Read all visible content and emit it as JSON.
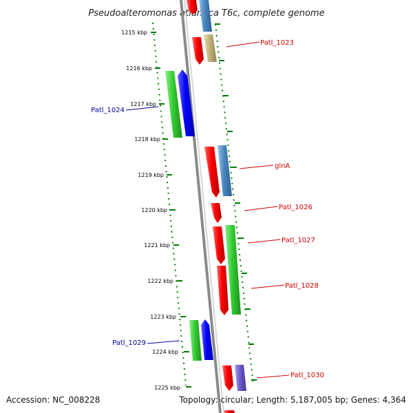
{
  "title": "Pseudoalteromonas atlantica T6c, complete genome",
  "accession_text": "Accession: NC_008228",
  "topology_text": "Topology: circular; Length: 5,187,005 bp; Genes: 4,364",
  "colors": {
    "forward_label": "#cc0000",
    "reverse_label": "#000099",
    "backbone": "#8a8a8a",
    "tick": "#007a00"
  },
  "kbp_labels": [
    "1215 kbp",
    "1216 kbp",
    "1217 kbp",
    "1218 kbp",
    "1219 kbp",
    "1220 kbp",
    "1221 kbp",
    "1222 kbp",
    "1223 kbp",
    "1224 kbp",
    "1225 kbp"
  ],
  "gene_labels": [
    {
      "text": "Patl_1023",
      "strand": "forward"
    },
    {
      "text": "Patl_1024",
      "strand": "reverse"
    },
    {
      "text": "glnA",
      "strand": "forward"
    },
    {
      "text": "Patl_1026",
      "strand": "forward"
    },
    {
      "text": "Patl_1027",
      "strand": "forward"
    },
    {
      "text": "Patl_1028",
      "strand": "forward"
    },
    {
      "text": "Patl_1029",
      "strand": "reverse"
    },
    {
      "text": "Patl_1030",
      "strand": "forward"
    }
  ]
}
